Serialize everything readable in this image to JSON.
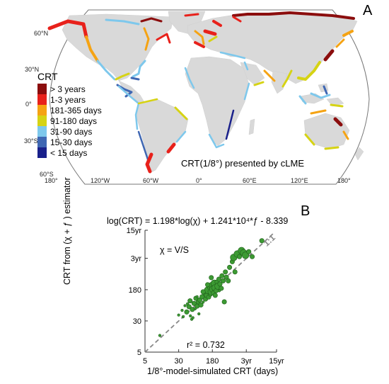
{
  "panel_a": {
    "letter": "A",
    "lat_labels": [
      "60°N",
      "30°N",
      "0°",
      "30°S",
      "60°S"
    ],
    "lon_labels": [
      "180°",
      "120°W",
      "60°W",
      "0°",
      "60°E",
      "120°E",
      "180°"
    ],
    "legend_title": "CRT",
    "legend": [
      {
        "label": "> 3 years",
        "color": "#8b0d0d"
      },
      {
        "label": "1-3 years",
        "color": "#e8211b"
      },
      {
        "label": "181-365 days",
        "color": "#f5a313"
      },
      {
        "label": "91-180 days",
        "color": "#d6d314"
      },
      {
        "label": "31-90 days",
        "color": "#7ec8ec"
      },
      {
        "label": "15-30 days",
        "color": "#3f67b3"
      },
      {
        "label": "< 15 days",
        "color": "#19208b"
      }
    ],
    "map_title": "CRT(1/8°) presented by cLME"
  },
  "panel_b": {
    "letter": "B",
    "equation": "log(CRT) = 1.198*log(χ) + 1.241*10⁴*ƒ - 8.339",
    "chi_def": "χ = V/S",
    "r2_label": "r² = 0.732",
    "line_label": "1:1",
    "marker_color": "#3c9a33",
    "chart_data": {
      "type": "scatter",
      "title": "",
      "xlabel": "1/8°-model-simulated CRT (days)",
      "ylabel": "CRT from (χ + ƒ ) estimator",
      "log_scale": true,
      "xlim": [
        5,
        5475
      ],
      "ylim": [
        5,
        5475
      ],
      "x_ticks": [
        5,
        30,
        180,
        1095,
        5475
      ],
      "x_tick_labels": [
        "5",
        "30",
        "180",
        "3yr",
        "15yr"
      ],
      "y_ticks": [
        5,
        30,
        180,
        1095,
        5475
      ],
      "y_tick_labels": [
        "5",
        "30",
        "180",
        "3yr",
        "15yr"
      ],
      "reference_line": "1:1",
      "points": [
        {
          "x": 11,
          "y": 13,
          "s": 1
        },
        {
          "x": 30,
          "y": 42,
          "s": 1
        },
        {
          "x": 36,
          "y": 55,
          "s": 1
        },
        {
          "x": 42,
          "y": 72,
          "s": 1
        },
        {
          "x": 46,
          "y": 50,
          "s": 2
        },
        {
          "x": 52,
          "y": 68,
          "s": 2
        },
        {
          "x": 55,
          "y": 95,
          "s": 2
        },
        {
          "x": 60,
          "y": 33,
          "s": 1
        },
        {
          "x": 62,
          "y": 58,
          "s": 2
        },
        {
          "x": 68,
          "y": 82,
          "s": 2
        },
        {
          "x": 72,
          "y": 60,
          "s": 1
        },
        {
          "x": 75,
          "y": 110,
          "s": 2
        },
        {
          "x": 80,
          "y": 70,
          "s": 2
        },
        {
          "x": 85,
          "y": 90,
          "s": 2
        },
        {
          "x": 88,
          "y": 45,
          "s": 1
        },
        {
          "x": 92,
          "y": 100,
          "s": 2
        },
        {
          "x": 98,
          "y": 75,
          "s": 2
        },
        {
          "x": 104,
          "y": 120,
          "s": 2
        },
        {
          "x": 110,
          "y": 88,
          "s": 1
        },
        {
          "x": 118,
          "y": 150,
          "s": 2
        },
        {
          "x": 125,
          "y": 105,
          "s": 2
        },
        {
          "x": 132,
          "y": 130,
          "s": 2
        },
        {
          "x": 140,
          "y": 175,
          "s": 3
        },
        {
          "x": 148,
          "y": 118,
          "s": 2
        },
        {
          "x": 155,
          "y": 210,
          "s": 2
        },
        {
          "x": 162,
          "y": 140,
          "s": 2
        },
        {
          "x": 170,
          "y": 160,
          "s": 3
        },
        {
          "x": 178,
          "y": 230,
          "s": 3
        },
        {
          "x": 185,
          "y": 185,
          "s": 3
        },
        {
          "x": 192,
          "y": 150,
          "s": 2
        },
        {
          "x": 200,
          "y": 260,
          "s": 3
        },
        {
          "x": 210,
          "y": 200,
          "s": 3
        },
        {
          "x": 220,
          "y": 170,
          "s": 2
        },
        {
          "x": 232,
          "y": 280,
          "s": 2
        },
        {
          "x": 245,
          "y": 220,
          "s": 3
        },
        {
          "x": 255,
          "y": 330,
          "s": 2
        },
        {
          "x": 270,
          "y": 250,
          "s": 2
        },
        {
          "x": 290,
          "y": 195,
          "s": 2
        },
        {
          "x": 300,
          "y": 400,
          "s": 2
        },
        {
          "x": 320,
          "y": 300,
          "s": 2
        },
        {
          "x": 340,
          "y": 90,
          "s": 2
        },
        {
          "x": 360,
          "y": 500,
          "s": 2
        },
        {
          "x": 380,
          "y": 370,
          "s": 2
        },
        {
          "x": 420,
          "y": 300,
          "s": 2
        },
        {
          "x": 450,
          "y": 650,
          "s": 2
        },
        {
          "x": 520,
          "y": 900,
          "s": 2
        },
        {
          "x": 560,
          "y": 1150,
          "s": 3
        },
        {
          "x": 600,
          "y": 500,
          "s": 2
        },
        {
          "x": 680,
          "y": 1400,
          "s": 3
        },
        {
          "x": 760,
          "y": 1200,
          "s": 2
        },
        {
          "x": 850,
          "y": 1700,
          "s": 3
        },
        {
          "x": 950,
          "y": 1500,
          "s": 3
        },
        {
          "x": 1050,
          "y": 1300,
          "s": 3
        },
        {
          "x": 1250,
          "y": 1600,
          "s": 2
        },
        {
          "x": 1500,
          "y": 1200,
          "s": 2
        },
        {
          "x": 2500,
          "y": 3000,
          "s": 2
        },
        {
          "x": 170,
          "y": 360,
          "s": 2
        },
        {
          "x": 140,
          "y": 240,
          "s": 2
        },
        {
          "x": 110,
          "y": 160,
          "s": 2
        },
        {
          "x": 80,
          "y": 120,
          "s": 1
        },
        {
          "x": 210,
          "y": 130,
          "s": 2
        },
        {
          "x": 260,
          "y": 170,
          "s": 1
        },
        {
          "x": 56,
          "y": 40,
          "s": 1
        },
        {
          "x": 64,
          "y": 36,
          "s": 1
        },
        {
          "x": 38,
          "y": 38,
          "s": 1
        },
        {
          "x": 48,
          "y": 80,
          "s": 1
        }
      ]
    }
  }
}
